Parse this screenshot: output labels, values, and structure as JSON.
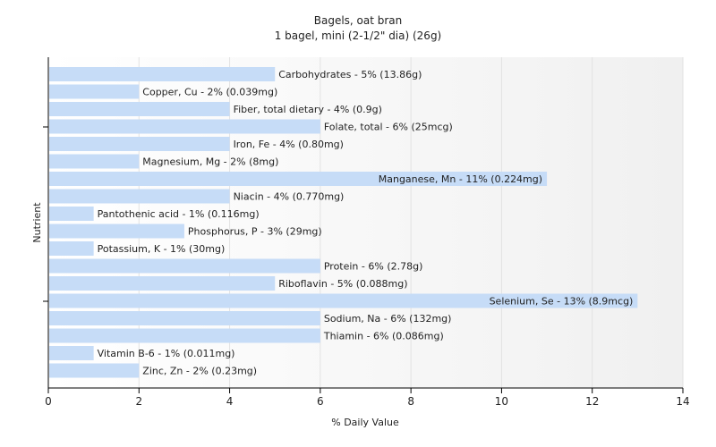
{
  "chart_data": {
    "type": "bar",
    "orientation": "horizontal",
    "title": "Bagels, oat bran",
    "subtitle": "1 bagel, mini (2-1/2\" dia) (26g)",
    "xlabel": "% Daily Value",
    "ylabel": "Nutrient",
    "xlim": [
      0,
      14
    ],
    "xticks": [
      "0",
      "2",
      "4",
      "6",
      "8",
      "10",
      "12",
      "14"
    ],
    "grid": true,
    "bar_color": "#c6dcf7",
    "categories": [
      "Carbohydrates",
      "Copper, Cu",
      "Fiber, total dietary",
      "Folate, total",
      "Iron, Fe",
      "Magnesium, Mg",
      "Manganese, Mn",
      "Niacin",
      "Pantothenic acid",
      "Phosphorus, P",
      "Potassium, K",
      "Protein",
      "Riboflavin",
      "Selenium, Se",
      "Sodium, Na",
      "Thiamin",
      "Vitamin B-6",
      "Zinc, Zn"
    ],
    "values": [
      5,
      2,
      4,
      6,
      4,
      2,
      11,
      4,
      1,
      3,
      1,
      6,
      5,
      13,
      6,
      6,
      1,
      2
    ],
    "labels": [
      "Carbohydrates - 5% (13.86g)",
      "Copper, Cu - 2% (0.039mg)",
      "Fiber, total dietary - 4% (0.9g)",
      "Folate, total - 6% (25mcg)",
      "Iron, Fe - 4% (0.80mg)",
      "Magnesium, Mg - 2% (8mg)",
      "Manganese, Mn - 11% (0.224mg)",
      "Niacin - 4% (0.770mg)",
      "Pantothenic acid - 1% (0.116mg)",
      "Phosphorus, P - 3% (29mg)",
      "Potassium, K - 1% (30mg)",
      "Protein - 6% (2.78g)",
      "Riboflavin - 5% (0.088mg)",
      "Selenium, Se - 13% (8.9mcg)",
      "Sodium, Na - 6% (132mg)",
      "Thiamin - 6% (0.086mg)",
      "Vitamin B-6 - 1% (0.011mg)",
      "Zinc, Zn - 2% (0.23mg)"
    ]
  }
}
